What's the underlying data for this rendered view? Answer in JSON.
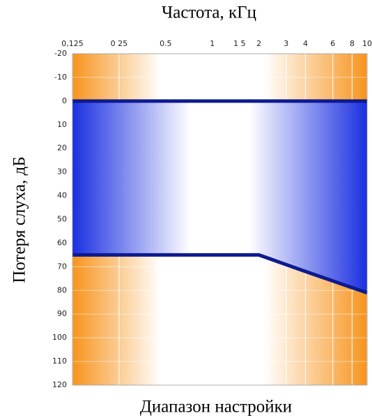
{
  "chart_data": {
    "type": "range",
    "title": "Частота, кГц",
    "y_label": "Потеря слуха, дБ",
    "caption": "Диапазон настройки",
    "x": [
      0.125,
      2,
      4,
      10
    ],
    "series": [
      {
        "color": "#0d1a8f",
        "values": [
          0,
          0,
          0,
          0
        ]
      },
      {
        "color": "#0d1a8f",
        "values": [
          65,
          65,
          72,
          81
        ]
      }
    ],
    "fill_color": "#1a2fe0",
    "background_color": "#f7941d",
    "xlog": true,
    "xlim": [
      0.125,
      10
    ],
    "xticks": [
      {
        "value": 0.125,
        "label": "0,125"
      },
      {
        "value": 0.25,
        "label": "0 25"
      },
      {
        "value": 0.5,
        "label": "0.5"
      },
      1,
      {
        "value": 1.5,
        "label": "1 5"
      },
      2,
      3,
      4,
      6,
      8,
      10
    ],
    "ylim": [
      -20,
      120
    ],
    "yticks": [
      -20,
      -10,
      0,
      10,
      20,
      30,
      40,
      50,
      60,
      70,
      80,
      90,
      100,
      110,
      120
    ],
    "y_inverted": true,
    "grid": true
  }
}
